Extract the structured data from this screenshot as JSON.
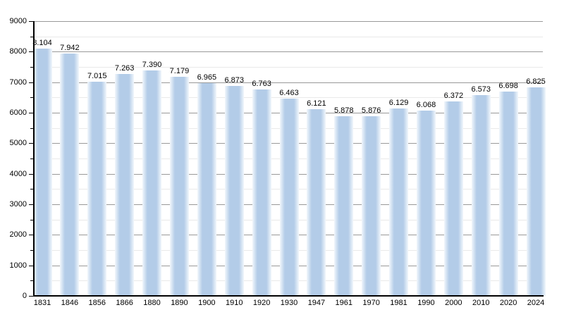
{
  "chart_data": {
    "type": "bar",
    "title": "",
    "xlabel": "",
    "ylabel": "",
    "categories": [
      "1831",
      "1846",
      "1856",
      "1866",
      "1880",
      "1890",
      "1900",
      "1910",
      "1920",
      "1930",
      "1947",
      "1961",
      "1970",
      "1981",
      "1990",
      "2000",
      "2010",
      "2020",
      "2024"
    ],
    "values": [
      8104,
      7942,
      7015,
      7263,
      7390,
      7179,
      6965,
      6873,
      6763,
      6463,
      6121,
      5878,
      5876,
      6129,
      6068,
      6372,
      6573,
      6698,
      6825
    ],
    "value_labels": [
      "8.104",
      "7.942",
      "7.015",
      "7.263",
      "7.390",
      "7.179",
      "6.965",
      "6.873",
      "6.763",
      "6.463",
      "6.121",
      "5.878",
      "5.876",
      "6.129",
      "6.068",
      "6.372",
      "6.573",
      "6.698",
      "6.825"
    ],
    "y_tick_labels": [
      "0",
      "1000",
      "2000",
      "3000",
      "4000",
      "5000",
      "6000",
      "7000",
      "8000",
      "9000"
    ],
    "ylim": [
      0,
      9000
    ],
    "y_major_step": 1000,
    "y_minor_step": 500,
    "grid": true,
    "legend_position": "none",
    "bar_color": "#b3cce8",
    "bar_edge_fade_color": "#f2f7fc",
    "major_grid_color": "#999999",
    "minor_grid_color": "#e9e9e9",
    "axis_color": "#000000",
    "text_color": "#000000"
  }
}
